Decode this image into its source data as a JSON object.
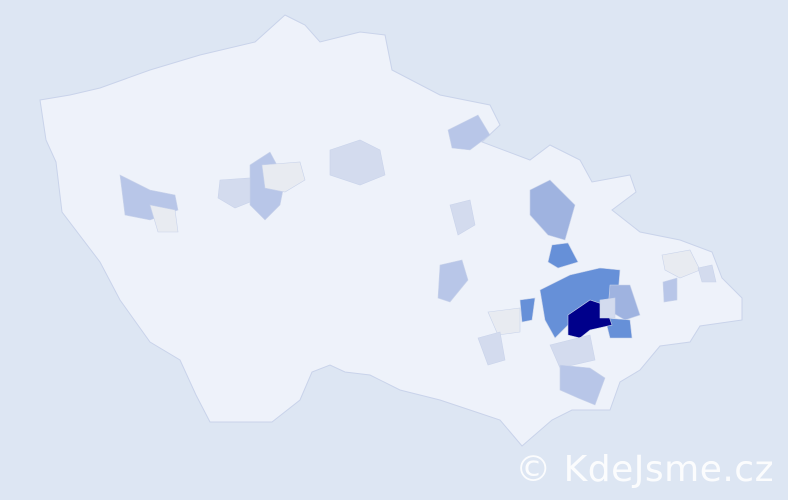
{
  "watermark": "© KdeJsme.cz",
  "colors": {
    "background": "#dde6f3",
    "base": "#eef2fa",
    "border": "#c9d3ea",
    "very_light": "#d3dbee",
    "light": "#b8c6e8",
    "medium": "#9fb3e0",
    "strong": "#6690d8",
    "darkest": "#00008b",
    "pale": "#e8ebf1"
  }
}
